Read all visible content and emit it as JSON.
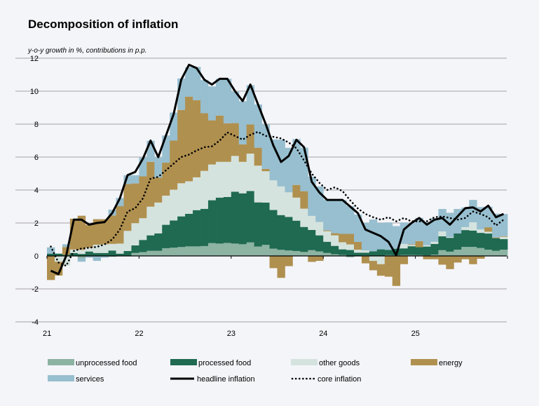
{
  "chart_data": {
    "type": "bar",
    "title": "Decomposition of inflation",
    "subtitle": "y-o-y growth in %, contributions in p.p.",
    "xlabel": "",
    "ylabel": "",
    "ylim": [
      -4,
      12
    ],
    "yticks": [
      "-4",
      "-2",
      "0",
      "2",
      "4",
      "6",
      "8",
      "10",
      "12"
    ],
    "xticks": [
      "21",
      "22",
      "23",
      "24",
      "25"
    ],
    "grid": true,
    "legend_placement": "bottom",
    "stacked": true,
    "start_period": "2021-01",
    "frequency": "monthly",
    "series": [
      {
        "name": "unprocessed food",
        "kind": "bar",
        "color": "#8db3a3",
        "values": [
          0,
          0,
          0,
          0,
          -0.15,
          0,
          0,
          0,
          -0.05,
          0,
          0,
          0.18,
          0.23,
          0.31,
          0.31,
          0.47,
          0.5,
          0.54,
          0.58,
          0.58,
          0.6,
          0.78,
          0.75,
          0.79,
          0.75,
          0.71,
          0.82,
          0.57,
          0.67,
          0.44,
          0.37,
          0.33,
          0.3,
          0.24,
          0.35,
          0.27,
          0.18,
          0.1,
          0.06,
          -0.08,
          0,
          0.03,
          0,
          0,
          0.05,
          0.04,
          0.06,
          0.06,
          0.05,
          0.03,
          0.08,
          0.35,
          0.26,
          0.38,
          0.55,
          0.55,
          0.48,
          0.38,
          0.31,
          0.38
        ]
      },
      {
        "name": "processed food",
        "kind": "bar",
        "color": "#1f6a50",
        "values": [
          0.14,
          0.14,
          0.07,
          0.18,
          0.12,
          0.27,
          0.18,
          0.18,
          0.33,
          0.14,
          0.3,
          0.46,
          0.74,
          0.94,
          1.06,
          1.42,
          1.65,
          1.86,
          1.98,
          2.2,
          2.26,
          2.6,
          2.79,
          2.79,
          3.15,
          3.09,
          3.12,
          2.68,
          2.57,
          2.35,
          2.11,
          2.04,
          1.84,
          1.52,
          1.23,
          0.98,
          0.68,
          0.51,
          0.34,
          0.36,
          0.2,
          0.17,
          0.28,
          0.4,
          0.32,
          0.4,
          0.4,
          0.53,
          0.48,
          0.54,
          0.65,
          0.84,
          0.84,
          0.99,
          1.02,
          0.99,
          0.92,
          0.98,
          0.77,
          0.64
        ]
      },
      {
        "name": "other goods",
        "kind": "bar",
        "color": "#d5e3de",
        "values": [
          0,
          -0.35,
          -0.6,
          0.21,
          0.25,
          0.23,
          0.5,
          0.53,
          0.4,
          0.61,
          1.22,
          1.35,
          1.32,
          1.74,
          1.87,
          1.77,
          1.87,
          2.01,
          1.97,
          1.99,
          2.3,
          2.17,
          2.17,
          2.13,
          2.17,
          1.91,
          2.27,
          2.23,
          1.9,
          1.8,
          1.74,
          1.49,
          1.4,
          1.11,
          0.85,
          0.81,
          0.64,
          0.64,
          0.43,
          0.34,
          0.18,
          0.14,
          -0.3,
          -0.5,
          0,
          0,
          0.27,
          0.08,
          0,
          0.08,
          0.13,
          0.3,
          0.04,
          0,
          0.18,
          0.5,
          0.21,
          0.11,
          0,
          0.14
        ]
      },
      {
        "name": "energy",
        "kind": "bar",
        "color": "#b0904f",
        "values": [
          -1.46,
          -0.84,
          0.47,
          1.87,
          2.07,
          1.39,
          1.55,
          1.52,
          1.73,
          2.27,
          2.84,
          2.41,
          2.54,
          2.72,
          1.52,
          2.0,
          2.98,
          4.45,
          5.13,
          4.68,
          3.5,
          2.68,
          2.81,
          2.34,
          1.99,
          1.06,
          1.77,
          1.09,
          0.14,
          -0.74,
          -1.33,
          -0.62,
          0.77,
          1.06,
          -0.36,
          -0.3,
          0.05,
          0.13,
          0.51,
          0.64,
          0.47,
          -0.45,
          -0.57,
          -0.7,
          -1.26,
          -1.82,
          -0.5,
          0.03,
          0.37,
          -0.2,
          -0.2,
          -0.53,
          -0.8,
          -0.4,
          -0.2,
          -0.5,
          -0.17,
          0.27,
          0.04,
          0.04
        ]
      },
      {
        "name": "services",
        "kind": "bar",
        "color": "#97bfcf",
        "values": [
          0.38,
          0,
          0.17,
          0,
          -0.2,
          -0.1,
          -0.3,
          -0.1,
          0.35,
          0.5,
          0.54,
          0.5,
          1.15,
          1.28,
          1.21,
          1.65,
          1.7,
          1.91,
          1.79,
          2.02,
          2.01,
          2.06,
          2.23,
          2.7,
          1.91,
          2.62,
          2.38,
          2.62,
          2.7,
          2.48,
          2.84,
          2.7,
          2.78,
          2.64,
          2.38,
          2.16,
          1.87,
          1.99,
          2.05,
          1.69,
          1.66,
          1.67,
          1.93,
          1.6,
          1.66,
          1.37,
          1.3,
          1.3,
          1.41,
          1.4,
          1.43,
          1.36,
          1.48,
          1.48,
          1.19,
          1.36,
          1.36,
          1.25,
          1.44,
          1.35
        ]
      },
      {
        "name": "headline inflation",
        "kind": "line",
        "color": "#000000",
        "values": [
          -0.9,
          -1.1,
          0,
          2.2,
          2.2,
          1.9,
          2.0,
          2.05,
          2.6,
          3.5,
          4.9,
          5.1,
          5.9,
          7.0,
          6.0,
          7.3,
          8.6,
          10.7,
          11.6,
          11.4,
          10.7,
          10.4,
          10.75,
          10.75,
          10.0,
          9.4,
          10.4,
          9.2,
          8.0,
          6.7,
          5.7,
          6.07,
          7.05,
          6.6,
          4.5,
          3.85,
          3.4,
          3.4,
          3.4,
          3.0,
          2.6,
          1.6,
          1.4,
          1.2,
          0.85,
          0.05,
          1.6,
          2.0,
          2.3,
          1.9,
          2.2,
          2.3,
          1.9,
          2.4,
          2.9,
          2.95,
          2.7,
          3.05,
          2.35,
          2.55
        ]
      },
      {
        "name": "core inflation",
        "kind": "dotted-line",
        "color": "#000000",
        "values": [
          0.57,
          -0.4,
          -0.6,
          0.3,
          0.45,
          0.5,
          0.55,
          0.7,
          1.0,
          1.6,
          2.7,
          2.9,
          3.5,
          4.7,
          4.8,
          5.2,
          5.6,
          6.0,
          6.15,
          6.4,
          6.6,
          6.65,
          7.0,
          7.5,
          7.28,
          7.06,
          7.35,
          7.53,
          7.28,
          7.23,
          7.13,
          6.88,
          6.54,
          5.79,
          5.0,
          4.44,
          4.0,
          4.16,
          3.94,
          3.38,
          2.88,
          2.55,
          2.35,
          2.2,
          2.35,
          2.1,
          2.3,
          2.1,
          2.1,
          2.1,
          2.35,
          2.4,
          2.3,
          2.2,
          2.3,
          2.7,
          2.55,
          2.35,
          1.85,
          2.2
        ]
      }
    ]
  }
}
